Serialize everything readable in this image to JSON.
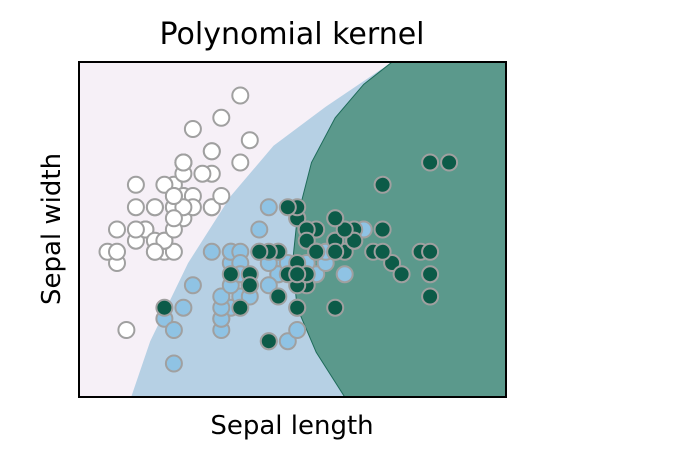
{
  "chart_data": {
    "type": "scatter",
    "title": "Polynomial kernel",
    "xlabel": "Sepal length",
    "ylabel": "Sepal width",
    "xlim": [
      4.0,
      8.5
    ],
    "ylim": [
      1.7,
      4.7
    ],
    "xticks": [],
    "yticks": [],
    "grid": false,
    "legend": "none",
    "colors": {
      "region_class0": "#f6f0f7",
      "region_class1": "#b6d0e4",
      "region_class2": "#5b998c",
      "point_class0": "#ffffff",
      "point_class1": "#8fc3e4",
      "point_class2": "#0c5b48",
      "point_edge": "#a0a0a0",
      "boundary": "#1e6b5a"
    },
    "decision_regions": [
      {
        "class": 0,
        "boundary_to": 1,
        "line": [
          [
            4.55,
            1.7
          ],
          [
            4.75,
            2.2
          ],
          [
            5.15,
            2.9
          ],
          [
            5.6,
            3.5
          ],
          [
            6.05,
            3.95
          ],
          [
            6.6,
            4.3
          ],
          [
            7.3,
            4.7
          ]
        ]
      },
      {
        "class": 2,
        "boundary_to": 1,
        "line": [
          [
            7.3,
            4.7
          ],
          [
            7.0,
            4.5
          ],
          [
            6.7,
            4.2
          ],
          [
            6.45,
            3.8
          ],
          [
            6.3,
            3.3
          ],
          [
            6.25,
            2.9
          ],
          [
            6.3,
            2.5
          ],
          [
            6.5,
            2.1
          ],
          [
            6.8,
            1.7
          ]
        ]
      }
    ],
    "series": [
      {
        "points": [
          [
            5.1,
            3.5
          ],
          [
            4.9,
            3.0
          ],
          [
            4.7,
            3.2
          ],
          [
            4.6,
            3.1
          ],
          [
            5.0,
            3.6
          ],
          [
            5.4,
            3.9
          ],
          [
            4.6,
            3.4
          ],
          [
            5.0,
            3.4
          ],
          [
            4.4,
            2.9
          ],
          [
            4.9,
            3.1
          ],
          [
            5.4,
            3.7
          ],
          [
            4.8,
            3.4
          ],
          [
            4.8,
            3.0
          ],
          [
            4.3,
            3.0
          ],
          [
            5.8,
            4.0
          ],
          [
            5.7,
            4.4
          ],
          [
            5.4,
            3.9
          ],
          [
            5.1,
            3.5
          ],
          [
            5.7,
            3.8
          ],
          [
            5.1,
            3.8
          ],
          [
            5.4,
            3.4
          ],
          [
            5.1,
            3.7
          ],
          [
            4.6,
            3.6
          ],
          [
            5.1,
            3.3
          ],
          [
            4.8,
            3.4
          ],
          [
            5.0,
            3.0
          ],
          [
            5.0,
            3.4
          ],
          [
            5.2,
            3.5
          ],
          [
            5.2,
            3.4
          ],
          [
            4.7,
            3.2
          ],
          [
            4.8,
            3.1
          ],
          [
            5.4,
            3.4
          ],
          [
            5.2,
            4.1
          ],
          [
            5.5,
            4.2
          ],
          [
            4.9,
            3.1
          ],
          [
            5.0,
            3.2
          ],
          [
            5.5,
            3.5
          ],
          [
            4.9,
            3.6
          ],
          [
            4.4,
            3.0
          ],
          [
            5.1,
            3.4
          ],
          [
            5.0,
            3.5
          ],
          [
            4.5,
            2.3
          ],
          [
            4.4,
            3.2
          ],
          [
            5.0,
            3.5
          ],
          [
            5.1,
            3.8
          ],
          [
            4.8,
            3.0
          ],
          [
            5.1,
            3.8
          ],
          [
            4.6,
            3.2
          ],
          [
            5.3,
            3.7
          ],
          [
            5.0,
            3.3
          ]
        ]
      },
      {
        "points": [
          [
            7.0,
            3.2
          ],
          [
            6.4,
            3.2
          ],
          [
            6.9,
            3.1
          ],
          [
            5.5,
            2.3
          ],
          [
            6.5,
            2.8
          ],
          [
            5.7,
            2.8
          ],
          [
            6.3,
            3.3
          ],
          [
            4.9,
            2.4
          ],
          [
            6.6,
            2.9
          ],
          [
            5.2,
            2.7
          ],
          [
            5.0,
            2.0
          ],
          [
            5.9,
            3.0
          ],
          [
            6.0,
            2.2
          ],
          [
            6.1,
            2.9
          ],
          [
            5.6,
            2.9
          ],
          [
            6.7,
            3.1
          ],
          [
            5.6,
            3.0
          ],
          [
            5.8,
            2.7
          ],
          [
            6.2,
            2.2
          ],
          [
            5.6,
            2.5
          ],
          [
            5.9,
            3.2
          ],
          [
            6.1,
            2.8
          ],
          [
            6.3,
            2.5
          ],
          [
            6.1,
            2.8
          ],
          [
            6.4,
            2.9
          ],
          [
            6.6,
            3.0
          ],
          [
            6.8,
            2.8
          ],
          [
            6.7,
            3.0
          ],
          [
            6.0,
            2.9
          ],
          [
            5.7,
            2.6
          ],
          [
            5.5,
            2.4
          ],
          [
            5.5,
            2.4
          ],
          [
            5.8,
            2.7
          ],
          [
            6.0,
            2.7
          ],
          [
            5.4,
            3.0
          ],
          [
            6.0,
            3.4
          ],
          [
            6.7,
            3.1
          ],
          [
            6.3,
            2.3
          ],
          [
            5.6,
            3.0
          ],
          [
            5.5,
            2.5
          ],
          [
            5.5,
            2.6
          ],
          [
            6.1,
            3.0
          ],
          [
            5.8,
            2.6
          ],
          [
            5.0,
            2.3
          ],
          [
            5.6,
            2.7
          ],
          [
            5.7,
            3.0
          ],
          [
            5.7,
            2.9
          ],
          [
            6.2,
            2.9
          ],
          [
            5.1,
            2.5
          ],
          [
            5.7,
            2.8
          ]
        ]
      },
      {
        "points": [
          [
            6.3,
            3.3
          ],
          [
            5.8,
            2.7
          ],
          [
            7.1,
            3.0
          ],
          [
            6.3,
            2.9
          ],
          [
            6.5,
            3.0
          ],
          [
            7.6,
            3.0
          ],
          [
            4.9,
            2.5
          ],
          [
            7.3,
            2.9
          ],
          [
            6.7,
            2.5
          ],
          [
            7.2,
            3.6
          ],
          [
            6.5,
            3.2
          ],
          [
            6.4,
            2.7
          ],
          [
            6.8,
            3.0
          ],
          [
            5.7,
            2.5
          ],
          [
            5.8,
            2.8
          ],
          [
            6.4,
            3.2
          ],
          [
            6.5,
            3.0
          ],
          [
            7.7,
            3.8
          ],
          [
            7.7,
            2.6
          ],
          [
            6.0,
            2.2
          ],
          [
            6.9,
            3.2
          ],
          [
            5.6,
            2.8
          ],
          [
            7.7,
            2.8
          ],
          [
            6.3,
            2.7
          ],
          [
            6.7,
            3.3
          ],
          [
            7.2,
            3.2
          ],
          [
            6.2,
            2.8
          ],
          [
            6.1,
            3.0
          ],
          [
            6.4,
            2.8
          ],
          [
            7.2,
            3.0
          ],
          [
            7.4,
            2.8
          ],
          [
            7.9,
            3.8
          ],
          [
            6.4,
            2.8
          ],
          [
            6.3,
            2.8
          ],
          [
            6.1,
            2.6
          ],
          [
            7.7,
            3.0
          ],
          [
            6.3,
            3.4
          ],
          [
            6.4,
            3.1
          ],
          [
            6.0,
            3.0
          ],
          [
            6.9,
            3.1
          ],
          [
            6.7,
            3.1
          ],
          [
            6.9,
            3.1
          ],
          [
            5.8,
            2.7
          ],
          [
            6.8,
            3.2
          ],
          [
            6.7,
            3.3
          ],
          [
            6.7,
            3.0
          ],
          [
            6.3,
            2.5
          ],
          [
            6.5,
            3.0
          ],
          [
            6.2,
            3.4
          ],
          [
            5.9,
            3.0
          ]
        ]
      }
    ]
  }
}
